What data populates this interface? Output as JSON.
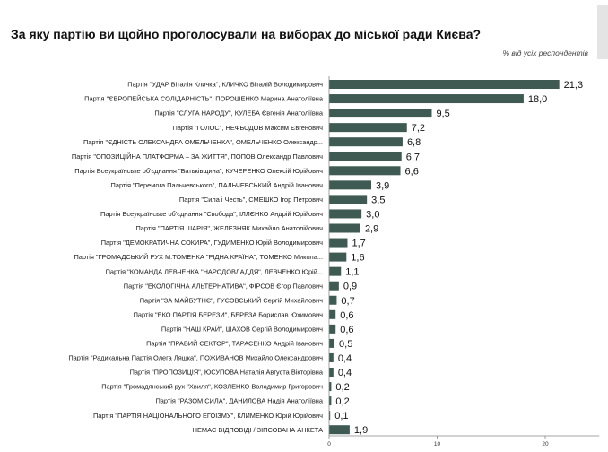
{
  "chart_data": {
    "type": "bar",
    "orientation": "horizontal",
    "title": "За яку партію ви щойно проголосували на виборах до міської ради Києва?",
    "subtitle": "% від усіх респондентів",
    "bar_color": "#3e5a52",
    "xlim": [
      0,
      25
    ],
    "x_ticks": [
      0,
      10,
      20
    ],
    "grid": false,
    "categories": [
      "Партія \"УДАР Віталія Кличка\", КЛИЧКО Віталій Володимирович",
      "Партія \"ЄВРОПЕЙСЬКА СОЛІДАРНІСТЬ\", ПОРОШЕНКО Марина Анатоліївна",
      "Партія \"СЛУГА НАРОДУ\", КУЛЕБА Євгенія Анатоліївна",
      "Партія \"ГОЛОС\", НЕФЬОДОВ Максим Євгенович",
      "Партія \"ЄДНІСТЬ ОЛЕКСАНДРА ОМЕЛЬЧЕНКА\", ОМЕЛЬЧЕНКО Олександр...",
      "Партія \"ОПОЗИЦІЙНА ПЛАТФОРМА – ЗА ЖИТТЯ\", ПОПОВ Олександр Павлович",
      "Партія Всеукраїнське об'єднання \"Батьківщина\", КУЧЕРЕНКО Олексій Юрійович",
      "Партія \"Перемога Пальчевського\", ПАЛЬЧЕВСЬКИЙ Андрій Іванович",
      "Партія \"Сила і Честь\", СМЕШКО Ігор Петрович",
      "Партія Всеукраїнське об'єднання \"Свобода\", ІЛЛЄНКО Андрій Юрійович",
      "Партія \"ПАРТІЯ ШАРІЯ\", ЖЕЛЕЗНЯК Михайло Анатолійович",
      "Партія \"ДЕМОКРАТИЧНА СОКИРА\", ГУДИМЕНКО Юрій Володимирович",
      "Партія \"ГРОМАДСЬКИЙ РУХ М.ТОМЕНКА \"РІДНА КРАЇНА\", ТОМЕНКО Микола...",
      "Партія \"КОМАНДА ЛЕВЧЕНКА \"НАРОДОВЛАДДЯ\", ЛЕВЧЕНКО Юрій...",
      "Партія \"ЕКОЛОГІЧНА АЛЬТЕРНАТИВА\", ФІРСОВ Єгор Павлович",
      "Партія \"ЗА МАЙБУТНЄ\", ГУСОВСЬКИЙ Сергій Михайлович",
      "Партія \"ЕКО ПАРТІЯ БЕРЕЗИ\", БЕРЕЗА Борислав Юхимович",
      "Партія \"НАШ КРАЙ\", ШАХОВ Сергій Володимирович",
      "Партія \"ПРАВИЙ СЕКТОР\", ТАРАСЕНКО Андрій Іванович",
      "Партія \"Радикальна Партія Олега Ляшка\", ПОЖИВАНОВ Михайло Олександрович",
      "Партія \"ПРОПОЗИЦІЯ\", ЮСУПОВА Наталія Августа Вікторівна",
      "Партія \"Громадянський рух \"Хвиля\", КОЗЛЕНКО Володимир Григорович",
      "Партія \"РАЗОМ СИЛА\", ДАНИЛОВА Надія Анатоліївна",
      "Партія \"ПАРТІЯ НАЦІОНАЛЬНОГО ЕГОЇЗМУ\", КЛИМЕНКО Юрій Юрійович",
      "НЕМАЄ ВІДПОВІДІ / ЗІПСОВАНА АНКЕТА"
    ],
    "values": [
      21.3,
      18.0,
      9.5,
      7.2,
      6.8,
      6.7,
      6.6,
      3.9,
      3.5,
      3.0,
      2.9,
      1.7,
      1.6,
      1.1,
      0.9,
      0.7,
      0.6,
      0.6,
      0.5,
      0.4,
      0.4,
      0.2,
      0.2,
      0.1,
      1.9
    ],
    "value_labels": [
      "21,3",
      "18,0",
      "9,5",
      "7,2",
      "6,8",
      "6,7",
      "6,6",
      "3,9",
      "3,5",
      "3,0",
      "2,9",
      "1,7",
      "1,6",
      "1,1",
      "0,9",
      "0,7",
      "0,6",
      "0,6",
      "0,5",
      "0,4",
      "0,4",
      "0,2",
      "0,2",
      "0,1",
      "1,9"
    ]
  }
}
